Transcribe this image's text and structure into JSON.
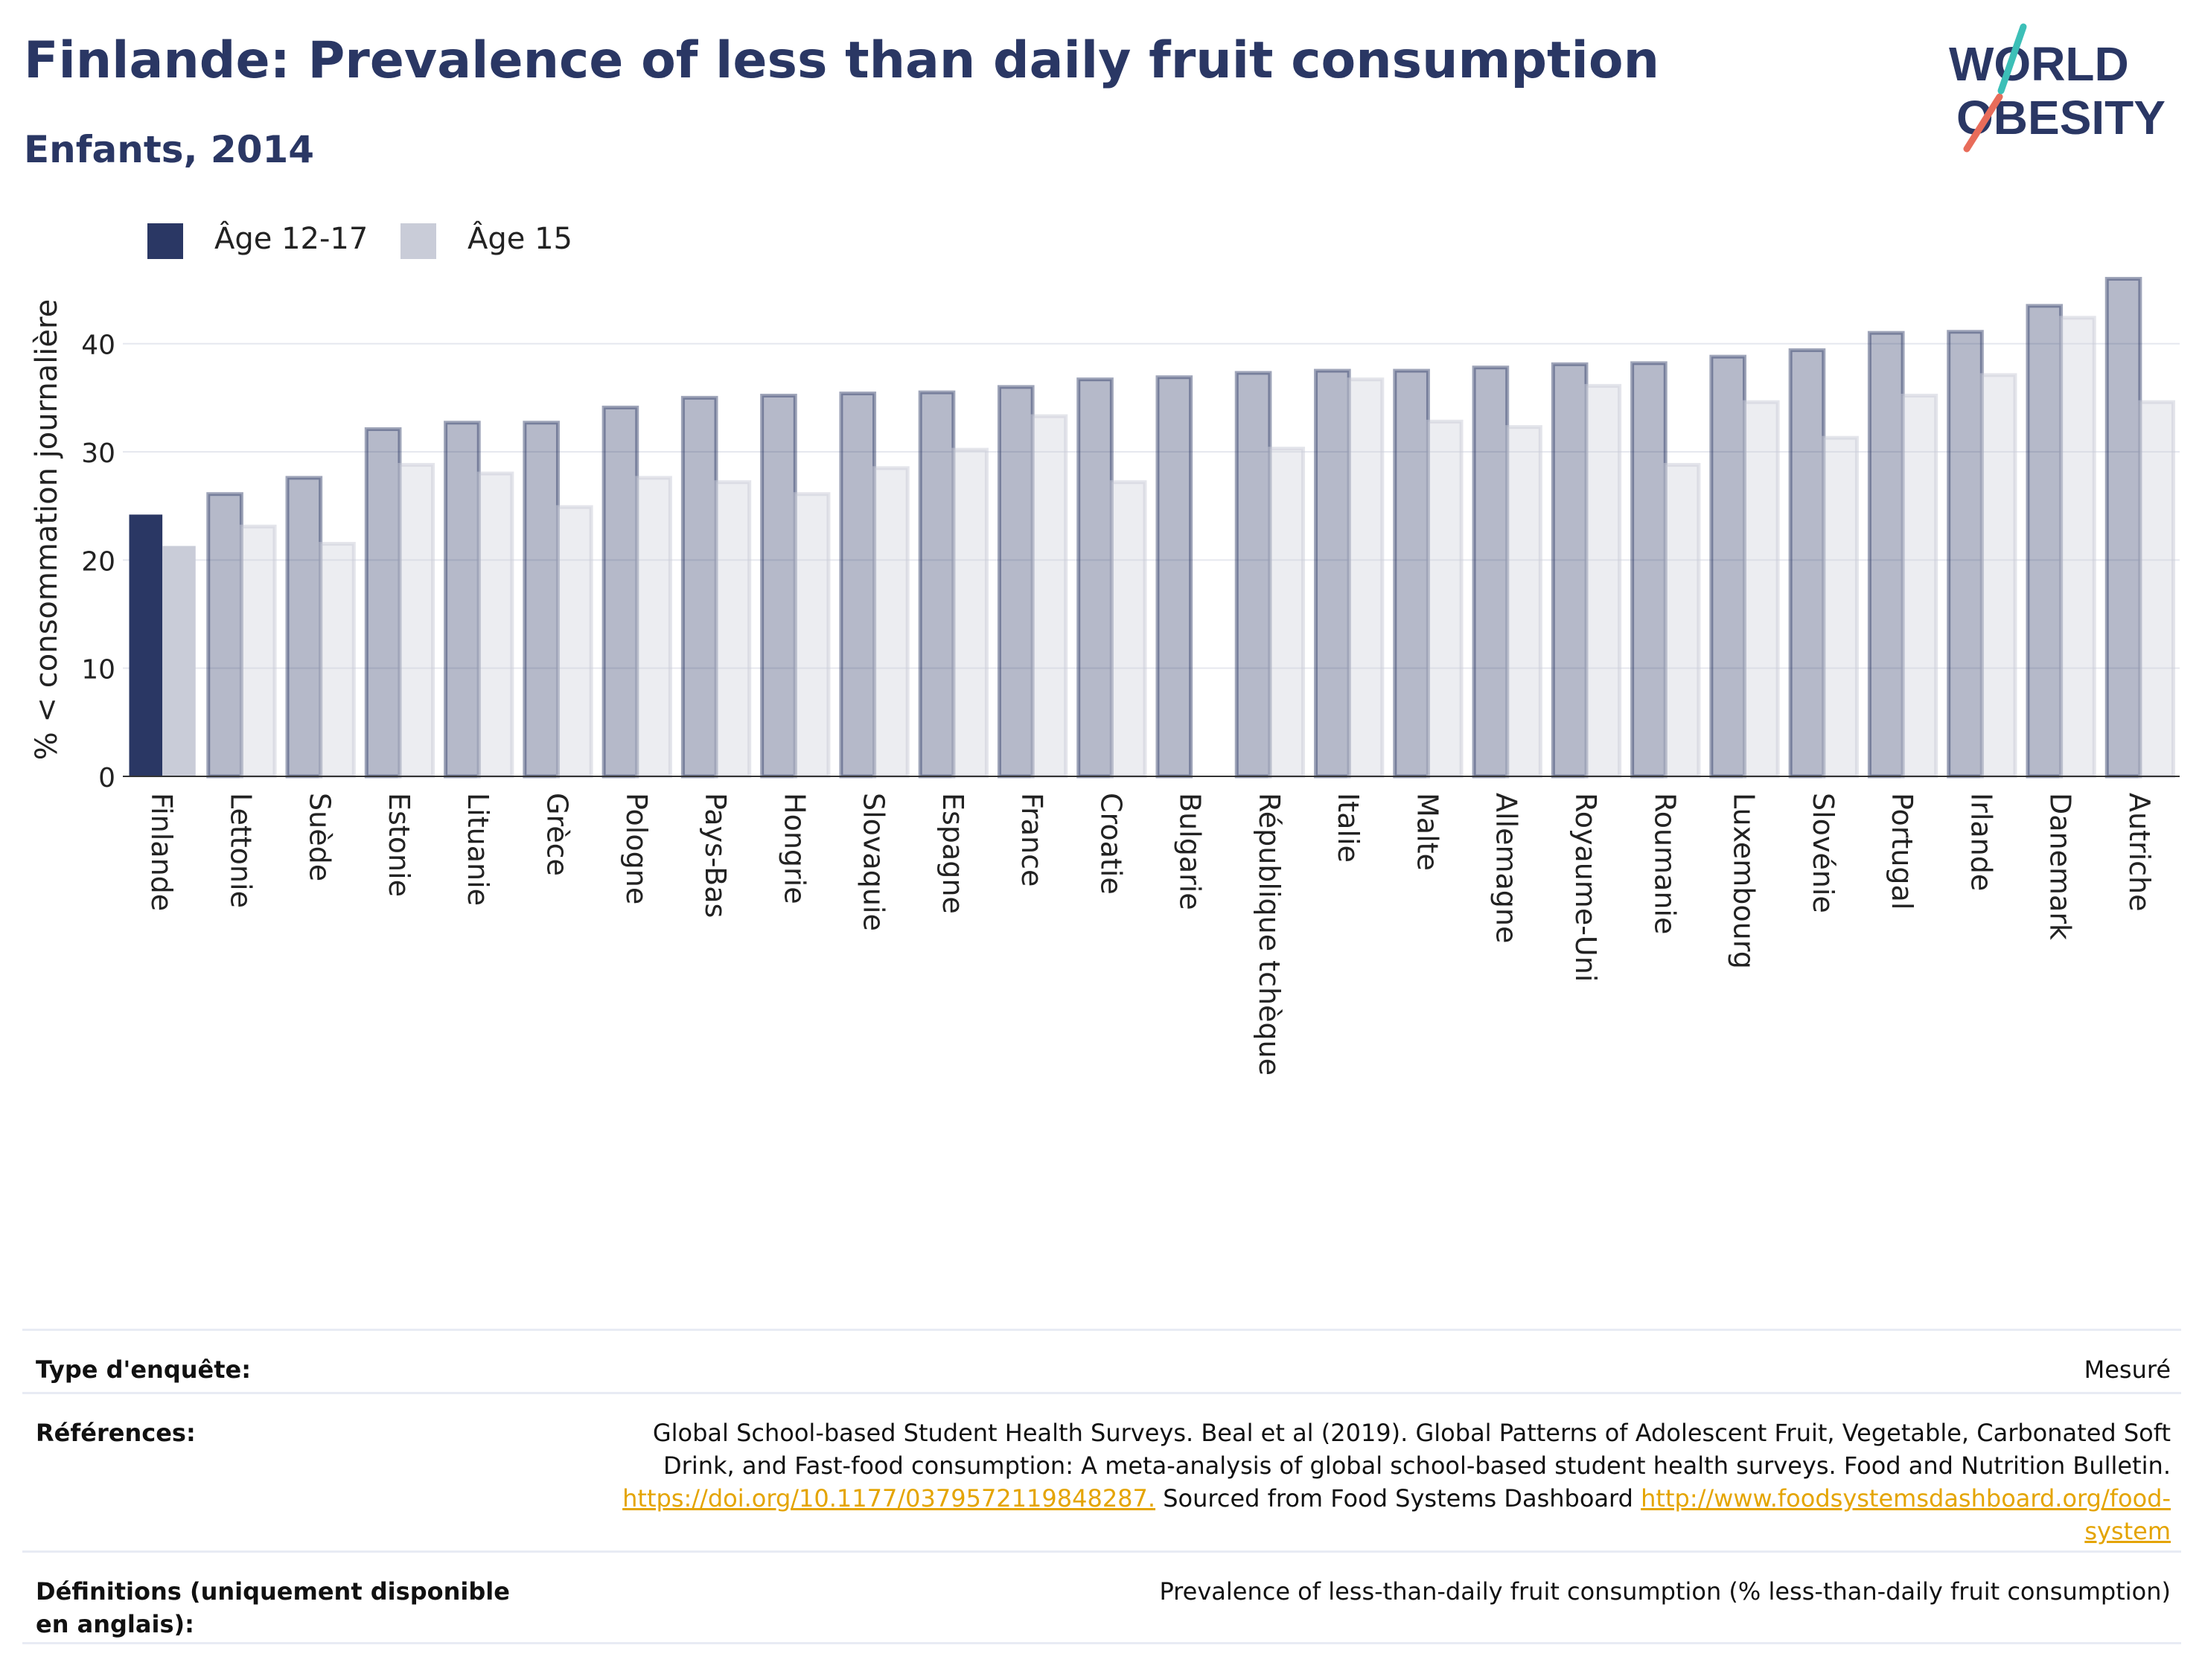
{
  "header": {
    "title": "Finlande: Prevalence of less than daily fruit consumption",
    "subtitle": "Enfants, 2014"
  },
  "logo": {
    "line1": "WORLD",
    "line2": "OBESITY"
  },
  "legend": [
    {
      "label": "Âge 12-17",
      "color": "#2a3764"
    },
    {
      "label": "Âge 15",
      "color": "#c9ccd8"
    }
  ],
  "chart_data": {
    "type": "bar",
    "ylabel": "% < consommation journalière",
    "ylim": [
      0,
      47
    ],
    "yticks": [
      0,
      10,
      20,
      30,
      40
    ],
    "grid": true,
    "legend_position": "top-left",
    "highlight_category": "Finlande",
    "categories": [
      "Finlande",
      "Lettonie",
      "Suède",
      "Estonie",
      "Lituanie",
      "Grèce",
      "Pologne",
      "Pays-Bas",
      "Hongrie",
      "Slovaquie",
      "Espagne",
      "France",
      "Croatie",
      "Bulgarie",
      "République tchèque",
      "Italie",
      "Malte",
      "Allemagne",
      "Royaume-Uni",
      "Roumanie",
      "Luxembourg",
      "Slovénie",
      "Portugal",
      "Irlande",
      "Danemark",
      "Autriche"
    ],
    "series": [
      {
        "name": "Âge 12-17",
        "values": [
          24.2,
          26.1,
          27.6,
          32.1,
          32.7,
          32.7,
          34.1,
          35.0,
          35.2,
          35.4,
          35.5,
          36.0,
          36.7,
          36.9,
          37.3,
          37.5,
          37.5,
          37.8,
          38.1,
          38.2,
          38.8,
          39.4,
          41.0,
          41.1,
          43.5,
          46.0
        ]
      },
      {
        "name": "Âge 15",
        "values": [
          21.3,
          23.1,
          21.5,
          28.8,
          28.0,
          24.9,
          27.6,
          27.2,
          26.1,
          28.5,
          30.2,
          33.3,
          27.2,
          null,
          30.3,
          36.7,
          32.8,
          32.3,
          36.1,
          28.8,
          34.6,
          31.3,
          35.2,
          37.1,
          42.4,
          34.6
        ]
      }
    ]
  },
  "info_table": [
    {
      "label": "Type d'enquête:",
      "value": "Mesuré"
    },
    {
      "label": "Références:",
      "value_text": "Global School-based Student Health Surveys. Beal et al (2019). Global Patterns of Adolescent Fruit, Vegetable, Carbonated Soft Drink, and Fast-food consumption: A meta-analysis of global school-based student health surveys. Food and Nutrition Bulletin.",
      "link1": "https://doi.org/10.1177/0379572119848287.",
      "mid_text": "Sourced from Food Systems Dashboard",
      "link2": "http://www.foodsystemsdashboard.org/food-system"
    },
    {
      "label": "Définitions (uniquement disponible en anglais):",
      "value": "Prevalence of less-than-daily fruit consumption (% less-than-daily fruit consumption)"
    }
  ]
}
